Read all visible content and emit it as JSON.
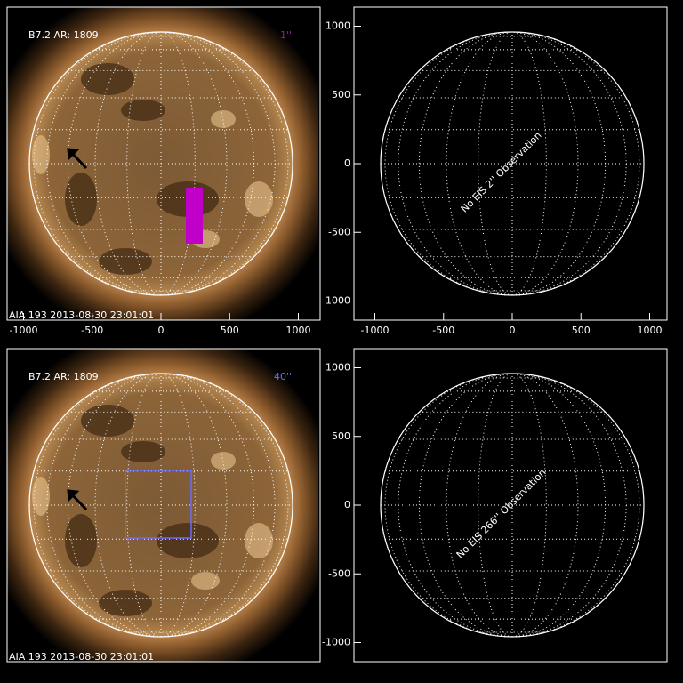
{
  "panels": [
    {
      "label": "B7.2  AR: 1809",
      "size_label": "1''",
      "timestamp": "AIA 193   2013-08-30 23:01:01",
      "xticks": [
        -1000,
        -500,
        0,
        500,
        1000
      ]
    },
    {
      "message": "No EIS 2'' Observation",
      "xticks": [
        -1000,
        -500,
        0,
        500,
        1000
      ],
      "yticks": [
        1000,
        500,
        0,
        -500,
        -1000
      ]
    },
    {
      "label": "B7.2  AR: 1809",
      "size_label": "40''",
      "timestamp": "AIA 193   2013-08-30 23:01:01"
    },
    {
      "message": "No EIS 266'' Observation",
      "yticks": [
        1000,
        500,
        0,
        -500,
        -1000
      ]
    }
  ]
}
